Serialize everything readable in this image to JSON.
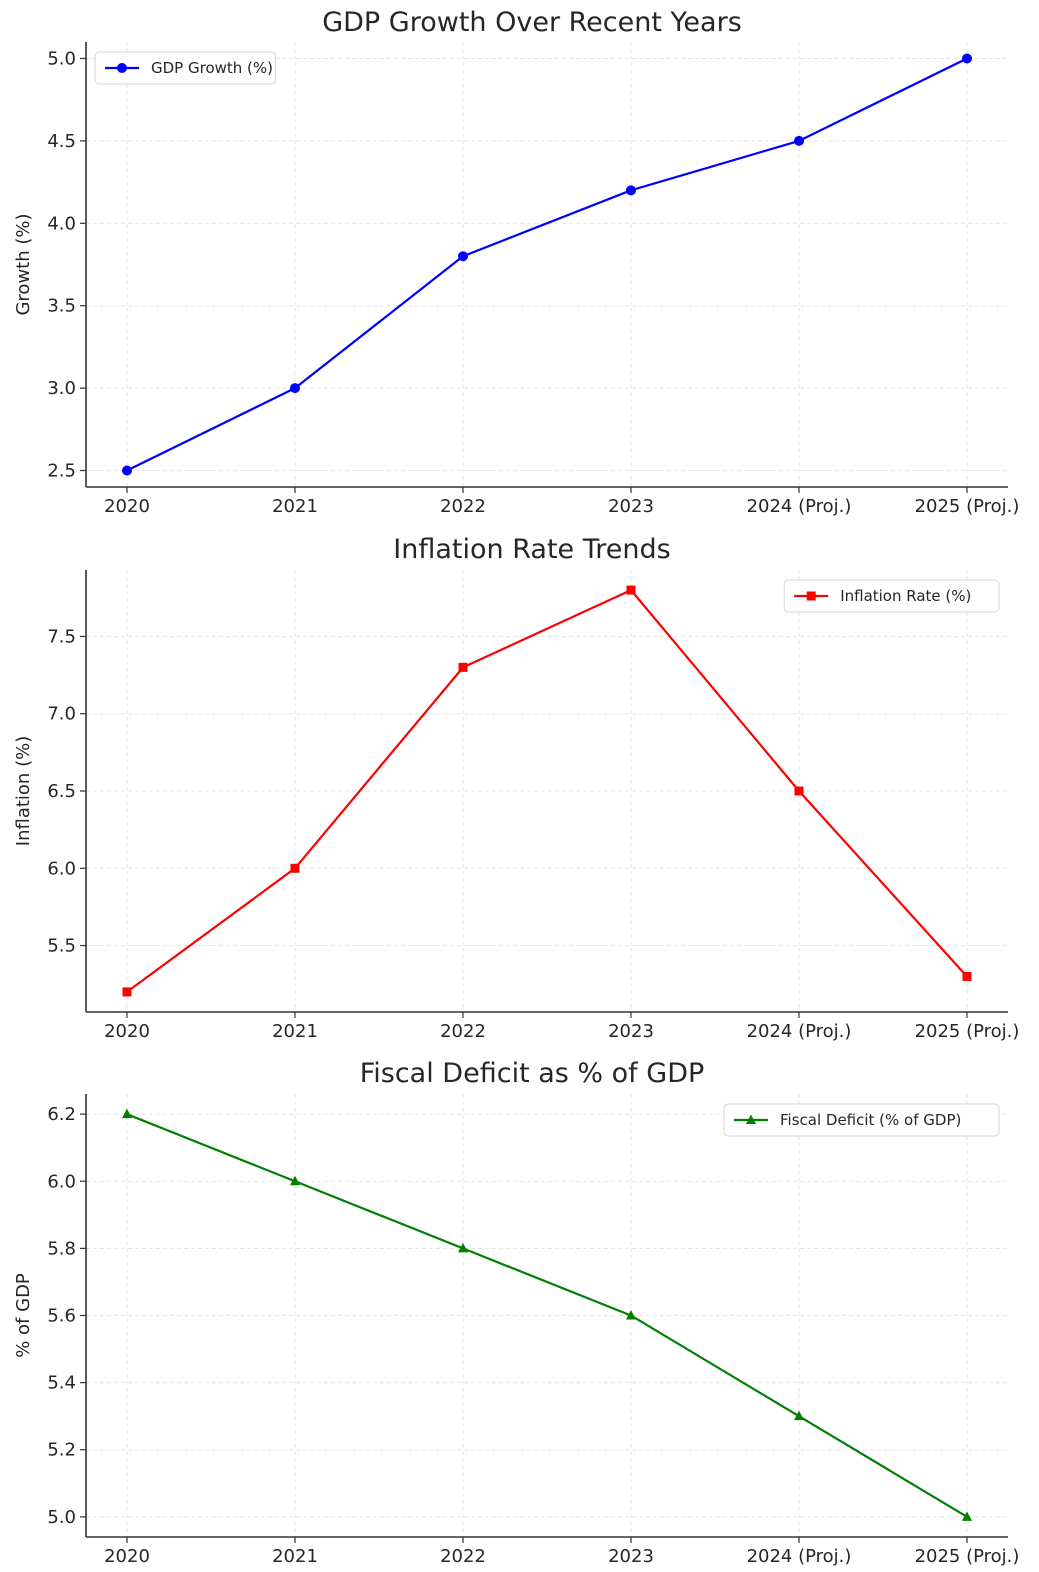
{
  "chart_data": [
    {
      "type": "line",
      "title": "GDP Growth Over Recent Years",
      "xlabel": "",
      "ylabel": "Growth (%)",
      "categories": [
        "2020",
        "2021",
        "2022",
        "2023",
        "2024 (Proj.)",
        "2025 (Proj.)"
      ],
      "ylim": [
        2.4,
        5.1
      ],
      "yticks": [
        "2.5",
        "3.0",
        "3.5",
        "4.0",
        "4.5",
        "5.0"
      ],
      "grid": true,
      "legend_position": "top-left",
      "series": [
        {
          "name": "GDP Growth (%)",
          "values": [
            2.5,
            3.0,
            3.8,
            4.2,
            4.5,
            5.0
          ],
          "color": "#0000ff",
          "marker": "circle"
        }
      ]
    },
    {
      "type": "line",
      "title": "Inflation Rate Trends",
      "xlabel": "",
      "ylabel": "Inflation (%)",
      "categories": [
        "2020",
        "2021",
        "2022",
        "2023",
        "2024 (Proj.)",
        "2025 (Proj.)"
      ],
      "ylim": [
        5.07,
        7.93
      ],
      "yticks": [
        "5.5",
        "6.0",
        "6.5",
        "7.0",
        "7.5"
      ],
      "grid": true,
      "legend_position": "top-right",
      "series": [
        {
          "name": "Inflation Rate (%)",
          "values": [
            5.2,
            6.0,
            7.3,
            7.8,
            6.5,
            5.3
          ],
          "color": "#ff0000",
          "marker": "square"
        }
      ]
    },
    {
      "type": "line",
      "title": "Fiscal Deficit as % of GDP",
      "xlabel": "",
      "ylabel": "% of GDP",
      "categories": [
        "2020",
        "2021",
        "2022",
        "2023",
        "2024 (Proj.)",
        "2025 (Proj.)"
      ],
      "ylim": [
        4.94,
        6.26
      ],
      "yticks": [
        "5.0",
        "5.2",
        "5.4",
        "5.6",
        "5.8",
        "6.0",
        "6.2"
      ],
      "grid": true,
      "legend_position": "top-right",
      "series": [
        {
          "name": "Fiscal Deficit (% of GDP)",
          "values": [
            6.2,
            6.0,
            5.8,
            5.6,
            5.3,
            5.0
          ],
          "color": "#008000",
          "marker": "triangle"
        }
      ]
    }
  ]
}
